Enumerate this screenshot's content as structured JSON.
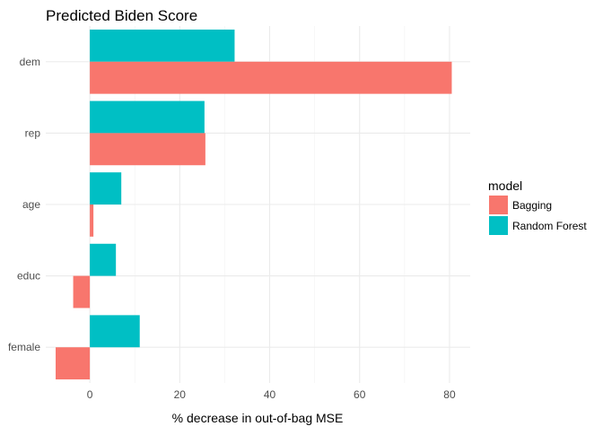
{
  "chart_data": {
    "type": "bar",
    "orientation": "horizontal",
    "title": "Predicted Biden Score",
    "xlabel": "% decrease in out-of-bag MSE",
    "ylabel": "",
    "categories": [
      "dem",
      "rep",
      "age",
      "educ",
      "female"
    ],
    "series": [
      {
        "name": "Bagging",
        "values": [
          80.5,
          25.7,
          0.8,
          -3.7,
          -7.6
        ],
        "color": "#F8766D"
      },
      {
        "name": "Random Forest",
        "values": [
          32.2,
          25.5,
          7.0,
          5.8,
          11.1
        ],
        "color": "#00BFC4"
      }
    ],
    "xlim": [
      -9.8,
      84.6
    ],
    "xticks": [
      0,
      20,
      40,
      60,
      80
    ],
    "grid": true,
    "legend": {
      "title": "model",
      "position": "right"
    }
  }
}
